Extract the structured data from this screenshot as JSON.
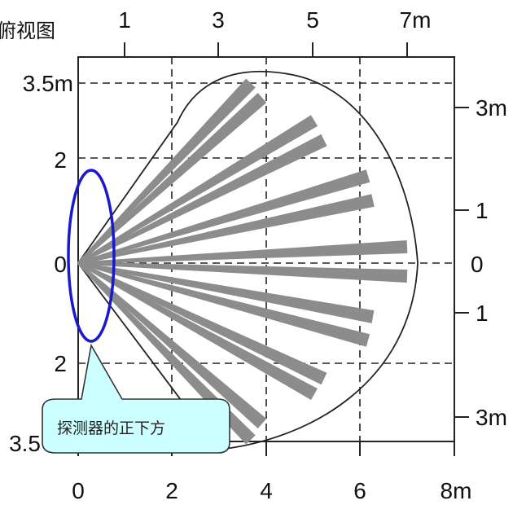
{
  "title": "俯视图",
  "top_axis": [
    "1",
    "3",
    "5",
    "7m"
  ],
  "bottom_axis": [
    "0",
    "2",
    "4",
    "6",
    "8m"
  ],
  "left_axis": [
    "3.5m",
    "2",
    "0",
    "2",
    "3.5"
  ],
  "right_axis": [
    "3m",
    "1",
    "0",
    "1",
    "3m"
  ],
  "callout": "探测器的正下方",
  "colors": {
    "grid": "#222222",
    "beam": "#8c8c8c",
    "ellipse": "#1a1acc",
    "callout_fill": "#ccffff",
    "callout_stroke": "#333333"
  }
}
